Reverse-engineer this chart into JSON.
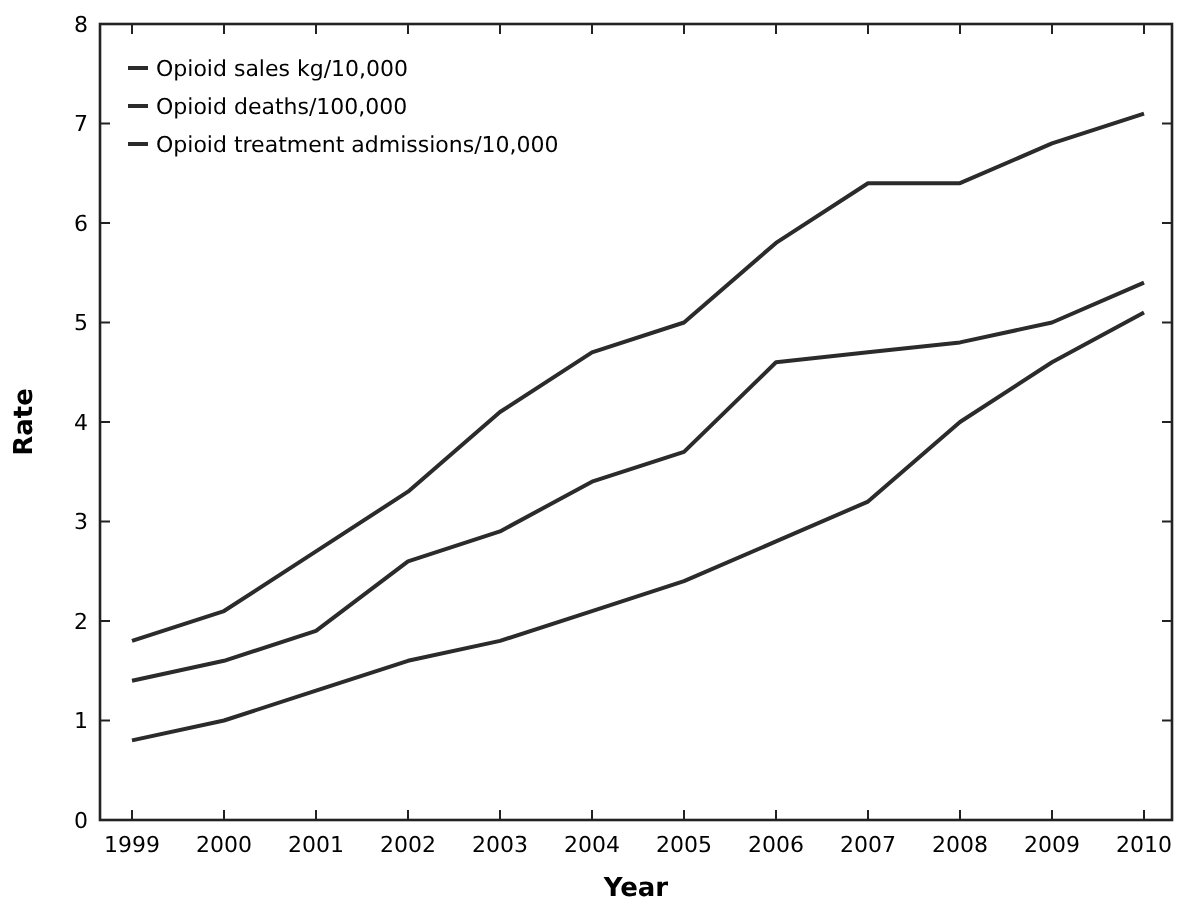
{
  "chart_data": {
    "type": "line",
    "xlabel": "Year",
    "ylabel": "Rate",
    "categories": [
      "1999",
      "2000",
      "2001",
      "2002",
      "2003",
      "2004",
      "2005",
      "2006",
      "2007",
      "2008",
      "2009",
      "2010"
    ],
    "series": [
      {
        "name": "Opioid sales kg/10,000",
        "color": "#2b2b2b",
        "values": [
          1.8,
          2.1,
          2.7,
          3.3,
          4.1,
          4.7,
          5.0,
          5.8,
          6.4,
          6.4,
          6.8,
          7.1
        ]
      },
      {
        "name": "Opioid deaths/100,000",
        "color": "#2b2b2b",
        "values": [
          1.4,
          1.6,
          1.9,
          2.6,
          2.9,
          3.4,
          3.7,
          4.6,
          4.7,
          4.8,
          5.0,
          5.4
        ]
      },
      {
        "name": "Opioid treatment admissions/10,000",
        "color": "#2b2b2b",
        "values": [
          0.8,
          1.0,
          1.3,
          1.6,
          1.8,
          2.1,
          2.4,
          2.8,
          3.2,
          4.0,
          4.6,
          5.1
        ]
      }
    ],
    "ylim": [
      0,
      8
    ],
    "yticks": [
      0,
      1,
      2,
      3,
      4,
      5,
      6,
      7,
      8
    ],
    "grid": false,
    "legend": "top left",
    "marker": "none",
    "line_style": "solid"
  }
}
